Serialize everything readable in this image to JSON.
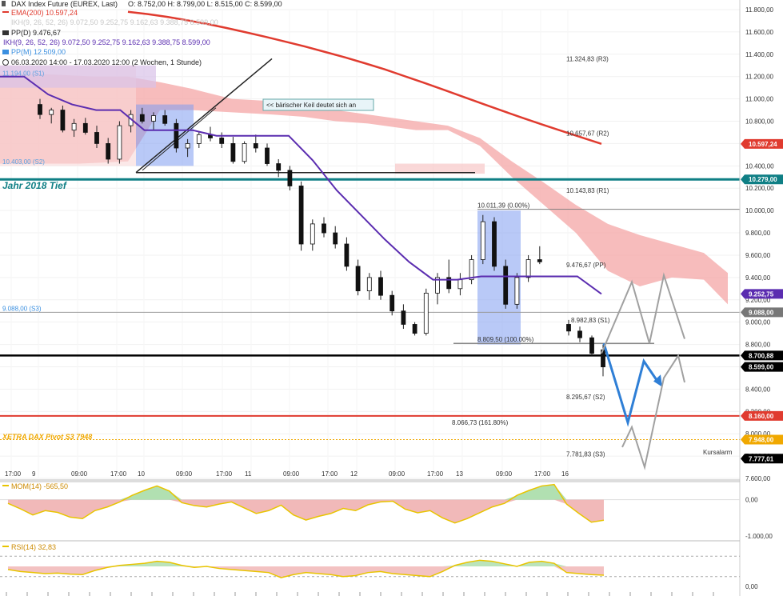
{
  "header": {
    "instrument": "DAX Index Future (EUREX, Last)",
    "ohlc": "O: 8.752,00   H: 8.799,00   L: 8.515,00   C: 8.599,00",
    "ema_legend": "EMA(200)  10.597,24",
    "faint_legend": "IKH(9, 26, 52, 26)  9.072,50  9.252,75  9.162,63  9.388,75  8.599,00",
    "ppd_legend": "PP(D)  9.476,67",
    "ikh_legend": "IKH(9, 26, 52, 26)  9.072,50  9.252,75  9.162,63  9.388,75  8.599,00",
    "ppm_legend": "PP(M)  12.509,00",
    "period_legend": "06.03.2020 14:00 - 17.03.2020 12:00   (2 Wochen, 1 Stunde)"
  },
  "colors": {
    "ema": "#e03b2f",
    "cloud": "#f4a6a6",
    "tenkan": "#5b2db0",
    "teal": "#0f7f85",
    "pivot_orange": "#f0a800",
    "projection_blue": "#2f7fd6",
    "projection_gray": "#a0a0a0",
    "mom": "#e8c400",
    "rsi": "#e8c400"
  },
  "chart_data": {
    "type": "line",
    "instrument": "DAX Index Future (EUREX, Last)",
    "timeframe": "1 Stunde",
    "period": "06.03.2020 14:00 - 17.03.2020 12:00",
    "ohlc_last": {
      "open": 8752.0,
      "high": 8799.0,
      "low": 8515.0,
      "close": 8599.0
    },
    "ylim": [
      7600,
      11800
    ],
    "y_ticks": [
      "11.800,00",
      "11.600,00",
      "11.400,00",
      "11.200,00",
      "11.000,00",
      "10.800,00",
      "10.600,00",
      "10.400,00",
      "10.200,00",
      "10.000,00",
      "9.800,00",
      "9.600,00",
      "9.400,00",
      "9.200,00",
      "9.000,00",
      "8.800,00",
      "8.600,00",
      "8.400,00",
      "8.200,00",
      "8.000,00",
      "7.800,00",
      "7.600,00"
    ],
    "x_ticks": [
      "17:00",
      "9",
      "09:00",
      "17:00",
      "10",
      "09:00",
      "17:00",
      "11",
      "09:00",
      "17:00",
      "12",
      "09:00",
      "17:00",
      "13",
      "09:00",
      "17:00",
      "16"
    ],
    "series": [
      {
        "name": "EMA(200)",
        "last": 10597.24,
        "values": [
          11780,
          11760,
          11735,
          11705,
          11672,
          11635,
          11596,
          11555,
          11512,
          11468,
          11420,
          11372,
          11320,
          11265,
          11205,
          11145,
          11082,
          11018,
          10955,
          10892,
          10830,
          10770,
          10712,
          10655,
          10597.24
        ]
      },
      {
        "name": "IKH(9, 26, 52, 26)",
        "last": 9252.75,
        "values": [
          11200,
          11200,
          11040,
          10950,
          10900,
          10900,
          10720,
          10720,
          10720,
          10670,
          10670,
          10670,
          10670,
          10450,
          10180,
          9960,
          9740,
          9540,
          9380,
          9380,
          9410,
          9410,
          9410,
          9410,
          9410,
          9252.75
        ]
      }
    ],
    "candles_ohlc": [
      [
        10950,
        11000,
        10820,
        10860
      ],
      [
        10860,
        10920,
        10780,
        10900
      ],
      [
        10900,
        10940,
        10700,
        10720
      ],
      [
        10720,
        10820,
        10660,
        10780
      ],
      [
        10780,
        10830,
        10680,
        10700
      ],
      [
        10700,
        10760,
        10560,
        10600
      ],
      [
        10600,
        10650,
        10420,
        10460
      ],
      [
        10460,
        10800,
        10420,
        10760
      ],
      [
        10760,
        10900,
        10700,
        10860
      ],
      [
        10860,
        10920,
        10780,
        10800
      ],
      [
        10800,
        10880,
        10720,
        10850
      ],
      [
        10850,
        10900,
        10760,
        10780
      ],
      [
        10780,
        10820,
        10520,
        10560
      ],
      [
        10560,
        10640,
        10480,
        10600
      ],
      [
        10600,
        10700,
        10560,
        10680
      ],
      [
        10680,
        10750,
        10620,
        10650
      ],
      [
        10650,
        10700,
        10560,
        10600
      ],
      [
        10600,
        10660,
        10420,
        10440
      ],
      [
        10440,
        10620,
        10420,
        10600
      ],
      [
        10600,
        10680,
        10520,
        10560
      ],
      [
        10560,
        10600,
        10400,
        10420
      ],
      [
        10420,
        10460,
        10300,
        10360
      ],
      [
        10360,
        10400,
        10180,
        10220
      ],
      [
        10220,
        10260,
        9640,
        9700
      ],
      [
        9700,
        9920,
        9640,
        9880
      ],
      [
        9880,
        9940,
        9760,
        9800
      ],
      [
        9800,
        9860,
        9660,
        9700
      ],
      [
        9700,
        9760,
        9460,
        9500
      ],
      [
        9500,
        9560,
        9240,
        9280
      ],
      [
        9280,
        9440,
        9200,
        9400
      ],
      [
        9400,
        9460,
        9200,
        9240
      ],
      [
        9240,
        9280,
        9060,
        9100
      ],
      [
        9100,
        9160,
        8940,
        8980
      ],
      [
        8980,
        9000,
        8880,
        8900
      ],
      [
        8900,
        9300,
        8880,
        9260
      ],
      [
        9260,
        9440,
        9160,
        9400
      ],
      [
        9400,
        9560,
        9260,
        9300
      ],
      [
        9300,
        9440,
        9240,
        9380
      ],
      [
        9380,
        9600,
        9340,
        9560
      ],
      [
        9560,
        9960,
        9520,
        9900
      ],
      [
        9900,
        9940,
        9460,
        9500
      ],
      [
        9500,
        9560,
        9120,
        9160
      ],
      [
        9160,
        9440,
        9120,
        9400
      ],
      [
        9400,
        9600,
        9360,
        9560
      ],
      [
        9560,
        9680,
        9520,
        9540
      ],
      [
        8980,
        9020,
        8880,
        8920
      ],
      [
        8920,
        8960,
        8820,
        8860
      ],
      [
        8860,
        8880,
        8700,
        8720
      ],
      [
        8752,
        8799,
        8515,
        8599
      ]
    ],
    "levels": [
      {
        "label": "11.194,00 (S1)",
        "value": 11194.0
      },
      {
        "label": "10.403,00 (S2)",
        "value": 10403.0
      },
      {
        "label": "11.324,83 (R3)",
        "value": 11324.83
      },
      {
        "label": "10.657,67 (R2)",
        "value": 10657.67
      },
      {
        "label": "10.143,83 (R1)",
        "value": 10143.83
      },
      {
        "label": "10.011,39 (0.00%)",
        "value": 10011.39
      },
      {
        "label": "9.476,67 (PP)",
        "value": 9476.67
      },
      {
        "label": "9.088,00 (S3)",
        "value": 9088.0
      },
      {
        "label": "8.982,83 (S1)",
        "value": 8982.83
      },
      {
        "label": "8.809,50 (100.00%)",
        "value": 8809.5
      },
      {
        "label": "8.295,67 (S2)",
        "value": 8295.67
      },
      {
        "label": "8.066,73 (161.80%)",
        "value": 8066.73
      },
      {
        "label": "7.781,83 (S3)",
        "value": 7781.83
      }
    ],
    "annotations": {
      "wedge_note": "<< bärischer Keil deutet sich an",
      "jahr_tief": "Jahr 2018 Tief",
      "xetra_pivot": "XETRA DAX Pivot S3 7948",
      "kursalarm": "Kursalarm"
    },
    "price_tags": [
      {
        "text": "10.597,24",
        "value": 10597.24,
        "color": "#e03b2f"
      },
      {
        "text": "10.279,00",
        "value": 10279.0,
        "color": "#0f7f85"
      },
      {
        "text": "9.252,75",
        "value": 9252.75,
        "color": "#5b2db0"
      },
      {
        "text": "9.088,00",
        "value": 9088.0,
        "color": "#777777"
      },
      {
        "text": "8.700,88",
        "value": 8700.88,
        "color": "#000000"
      },
      {
        "text": "8.599,00",
        "value": 8599.0,
        "color": "#000000"
      },
      {
        "text": "8.160,00",
        "value": 8160.0,
        "color": "#e03b2f"
      },
      {
        "text": "7.948,00",
        "value": 7948.0,
        "color": "#f0a800"
      },
      {
        "text": "7.777,01",
        "value": 7777.01,
        "color": "#000000"
      }
    ],
    "horizontal_lines": [
      {
        "value": 10279.0,
        "color": "#0f7f85"
      },
      {
        "value": 8700.88,
        "color": "#000000"
      },
      {
        "value": 8160.0,
        "color": "#e03b2f"
      },
      {
        "value": 7948.0,
        "color": "#f0a800"
      },
      {
        "value": 9088.0,
        "color": "#999999"
      }
    ],
    "mom": {
      "name": "MOM(14)",
      "last": -565.5,
      "ticks": [
        "0,00",
        "-1.000,00"
      ],
      "values": [
        -100,
        -250,
        -420,
        -300,
        -350,
        -480,
        -520,
        -300,
        -200,
        -60,
        120,
        260,
        380,
        240,
        -80,
        -160,
        -200,
        -120,
        -60,
        -220,
        -380,
        -300,
        -150,
        -420,
        -560,
        -460,
        -380,
        -240,
        -300,
        -140,
        -60,
        -40,
        -260,
        -360,
        -300,
        -500,
        -640,
        -520,
        -360,
        -200,
        -100,
        120,
        260,
        380,
        420,
        -120,
        -380,
        -620,
        -565.5
      ]
    },
    "rsi": {
      "name": "RSI(14)",
      "last": 32.83,
      "ticks": [
        "0,00"
      ],
      "values": [
        44,
        40,
        38,
        36,
        37,
        35,
        34,
        42,
        48,
        52,
        54,
        56,
        60,
        58,
        52,
        48,
        50,
        46,
        44,
        42,
        40,
        38,
        28,
        34,
        38,
        36,
        34,
        30,
        32,
        38,
        40,
        36,
        34,
        32,
        30,
        40,
        52,
        58,
        62,
        60,
        55,
        50,
        58,
        60,
        56,
        38,
        36,
        34,
        32.83
      ]
    }
  }
}
